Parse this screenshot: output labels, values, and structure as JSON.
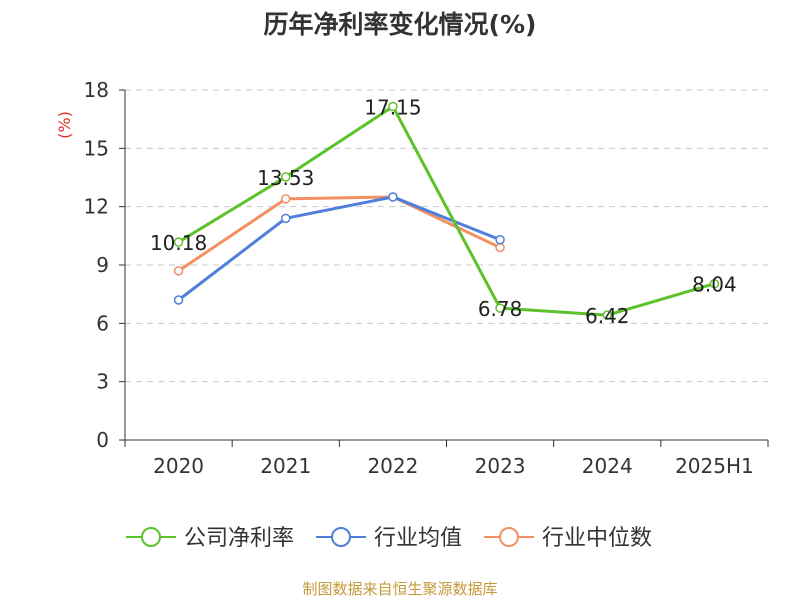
{
  "chart_data": {
    "type": "line",
    "title": "历年净利率变化情况(%)",
    "ylabel": "(%)",
    "xlabel": "",
    "categories": [
      "2020",
      "2021",
      "2022",
      "2023",
      "2024",
      "2025H1"
    ],
    "ylim": [
      0,
      18
    ],
    "yticks": [
      0,
      3,
      6,
      9,
      12,
      15,
      18
    ],
    "grid": true,
    "legend_position": "bottom",
    "series": [
      {
        "name": "公司净利率",
        "color": "#5cc22b",
        "values": [
          10.18,
          13.53,
          17.15,
          6.78,
          6.42,
          8.04
        ],
        "labels": [
          "10.18",
          "13.53",
          "17.15",
          "6.78",
          "6.42",
          "8.04"
        ]
      },
      {
        "name": "行业均值",
        "color": "#4f7fd8",
        "values": [
          7.2,
          11.4,
          12.5,
          10.3,
          null,
          null
        ]
      },
      {
        "name": "行业中位数",
        "color": "#f39063",
        "values": [
          8.7,
          12.4,
          12.5,
          9.9,
          null,
          null
        ]
      }
    ]
  },
  "footer": "制图数据来自恒生聚源数据库"
}
